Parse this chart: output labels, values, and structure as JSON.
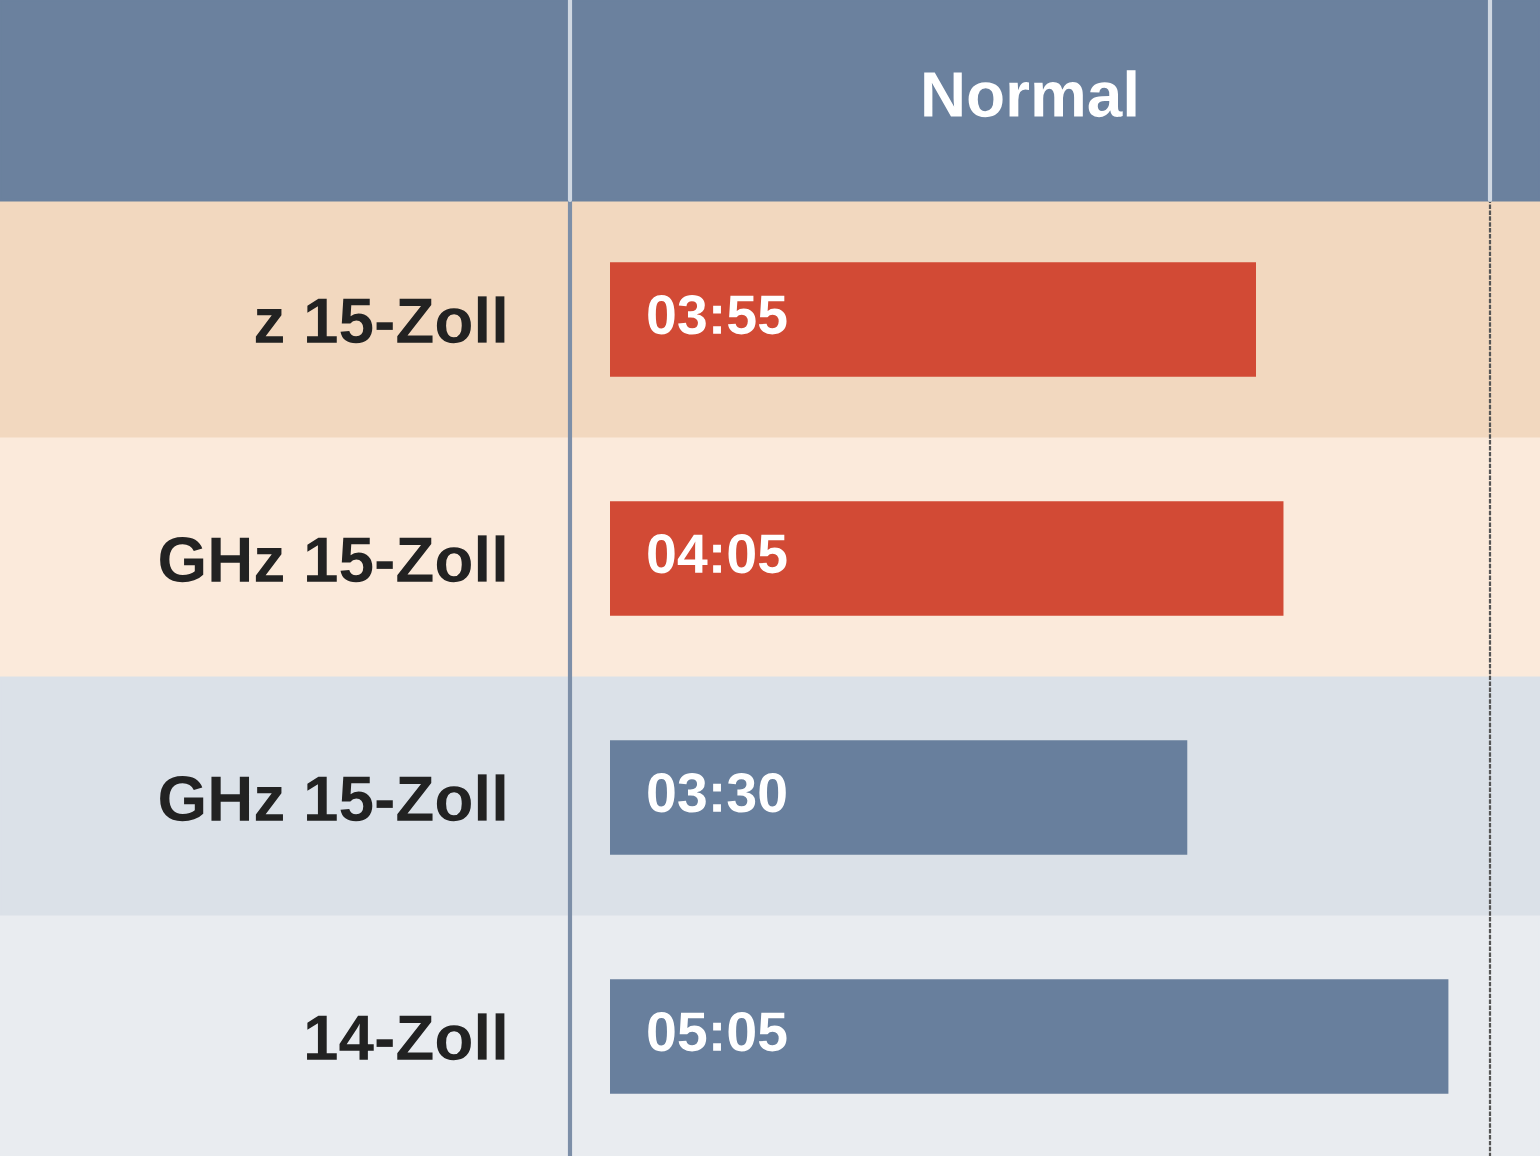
{
  "chart_data": {
    "type": "bar",
    "orientation": "horizontal",
    "title": "Normal",
    "categories": [
      "z 15-Zoll",
      "GHz 15-Zoll",
      "GHz 15-Zoll",
      "14-Zoll"
    ],
    "values": [
      3.9167,
      4.0833,
      3.5,
      5.0833
    ],
    "value_labels": [
      "03:55",
      "04:05",
      "03:30",
      "05:05"
    ],
    "colors": [
      "#d24a35",
      "#d24a35",
      "#687f9d",
      "#687f9d"
    ],
    "grid": false,
    "tick_labels": "y"
  }
}
